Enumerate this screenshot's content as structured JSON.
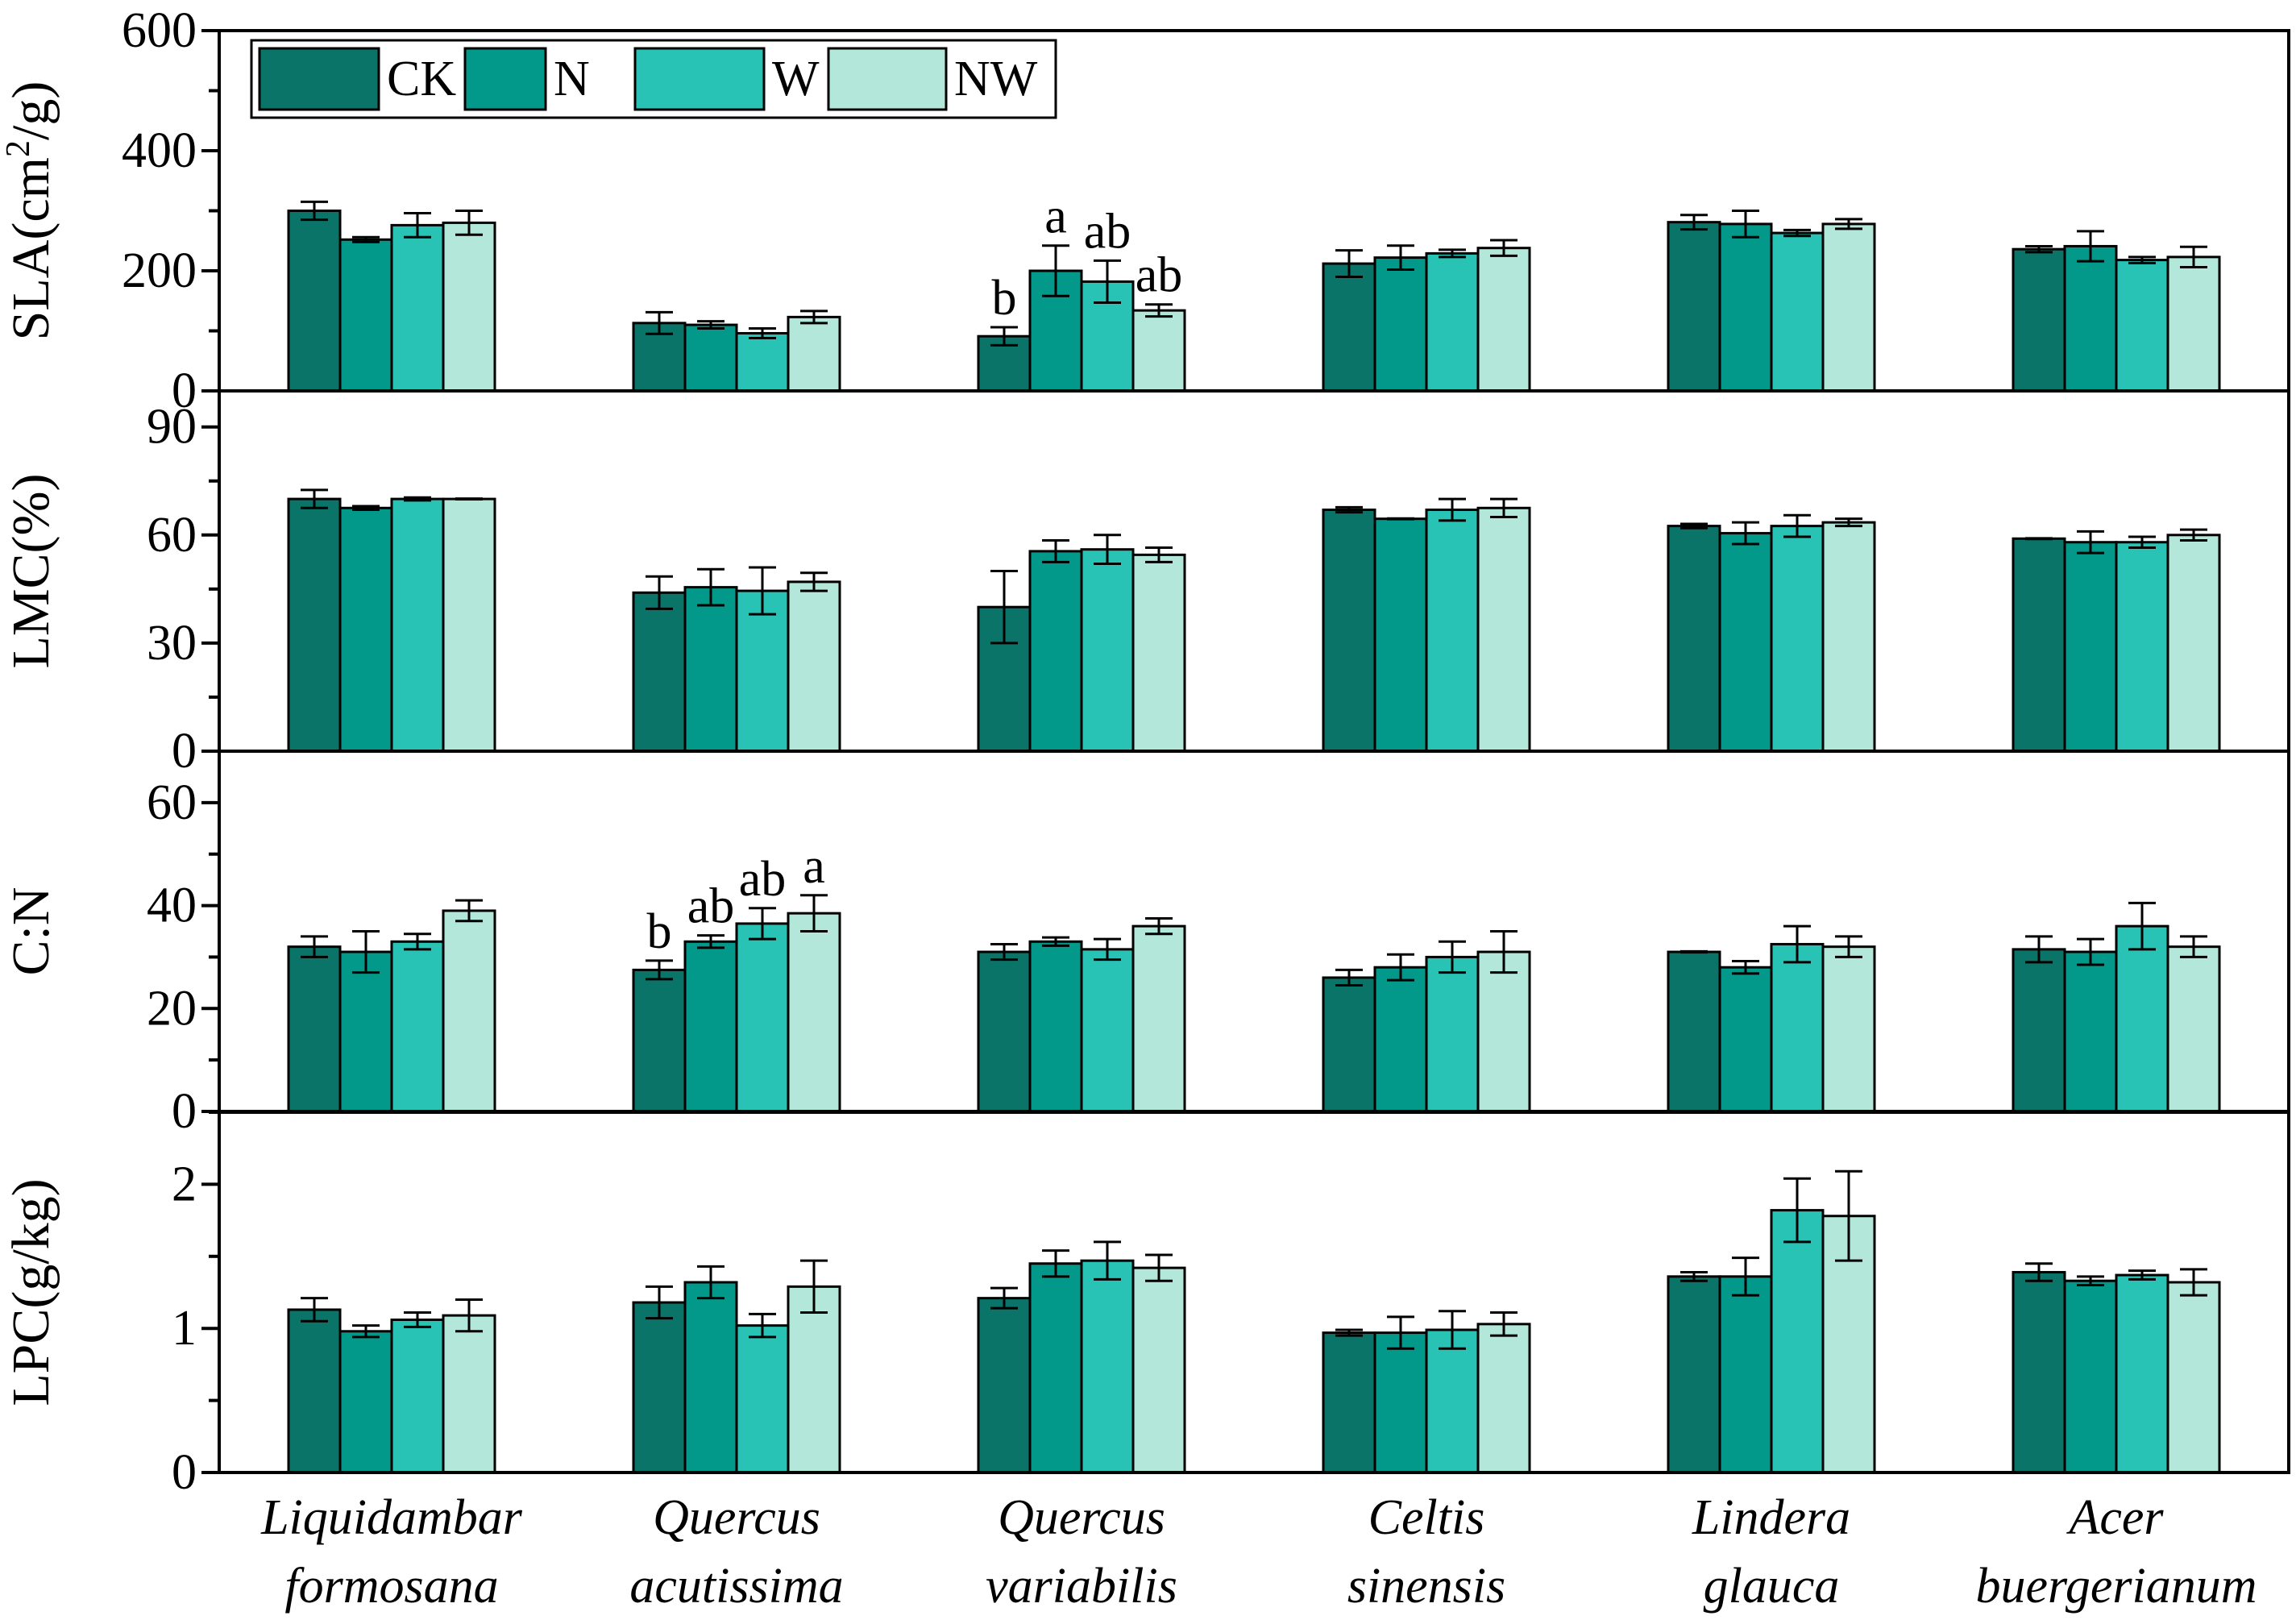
{
  "chart_data": {
    "type": "bar",
    "categories": [
      [
        "Liquidambar",
        "formosana"
      ],
      [
        "Quercus",
        "acutissima"
      ],
      [
        "Quercus",
        "variabilis"
      ],
      [
        "Celtis",
        "sinensis"
      ],
      [
        "Lindera",
        "glauca"
      ],
      [
        "Acer",
        "buergerianum"
      ]
    ],
    "legend": {
      "position": "top-left",
      "entries": [
        {
          "name": "CK",
          "color": "#0b7468"
        },
        {
          "name": "N",
          "color": "#03998a"
        },
        {
          "name": "W",
          "color": "#28c3b5"
        },
        {
          "name": "NW",
          "color": "#b3e7d9"
        }
      ]
    },
    "panels": [
      {
        "ylabel_main": "SLA(cm",
        "ylabel_sup": "2",
        "ylabel_tail": "/g)",
        "ylim": [
          0,
          600
        ],
        "major_ticks": [
          0,
          200,
          400,
          600
        ],
        "tick_labels": [
          "0",
          "200",
          "400",
          "600"
        ],
        "minor_step": 100,
        "series": [
          {
            "name": "CK",
            "values": [
              300,
              113,
              91,
              212,
              281,
              236
            ],
            "errors": [
              15,
              18,
              15,
              22,
              12,
              5
            ]
          },
          {
            "name": "N",
            "values": [
              252,
              110,
              200,
              222,
              278,
              241
            ],
            "errors": [
              4,
              6,
              42,
              20,
              22,
              25
            ]
          },
          {
            "name": "W",
            "values": [
              276,
              96,
              182,
              229,
              263,
              218
            ],
            "errors": [
              20,
              8,
              35,
              6,
              5,
              5
            ]
          },
          {
            "name": "NW",
            "values": [
              280,
              123,
              134,
              238,
              278,
              223
            ],
            "errors": [
              20,
              10,
              10,
              13,
              8,
              17
            ]
          }
        ],
        "annotations": [
          {
            "category": 2,
            "series": 0,
            "text": "b"
          },
          {
            "category": 2,
            "series": 1,
            "text": "a"
          },
          {
            "category": 2,
            "series": 2,
            "text": "ab"
          },
          {
            "category": 2,
            "series": 3,
            "text": "ab"
          }
        ]
      },
      {
        "ylabel_main": "LMC(%)",
        "ylim": [
          0,
          100
        ],
        "major_ticks": [
          0,
          30,
          60,
          90
        ],
        "tick_labels": [
          "0",
          "30",
          "60",
          "90"
        ],
        "minor_step": 15,
        "series": [
          {
            "name": "CK",
            "values": [
              70,
              44,
              40,
              67,
              62.5,
              59
            ],
            "errors": [
              2.5,
              4.5,
              10,
              0.7,
              0.6,
              0.1
            ]
          },
          {
            "name": "N",
            "values": [
              67.5,
              45.5,
              55.5,
              64.5,
              60.5,
              58
            ],
            "errors": [
              0.5,
              5,
              3,
              0.1,
              3,
              3
            ]
          },
          {
            "name": "W",
            "values": [
              70,
              44.5,
              56,
              67,
              62.5,
              58
            ],
            "errors": [
              0.4,
              6.5,
              4,
              3,
              3,
              1.5
            ]
          },
          {
            "name": "NW",
            "values": [
              70,
              47,
              54.5,
              67.5,
              63.5,
              60
            ],
            "errors": [
              0.1,
              2.5,
              2,
              2.5,
              1,
              1.5
            ]
          }
        ],
        "annotations": []
      },
      {
        "ylabel_main": "C:N",
        "ylim": [
          0,
          70
        ],
        "major_ticks": [
          0,
          20,
          40,
          60
        ],
        "tick_labels": [
          "0",
          "20",
          "40",
          "60"
        ],
        "minor_step": 10,
        "series": [
          {
            "name": "CK",
            "values": [
              32,
              27.5,
              31,
              26,
              31,
              31.5
            ],
            "errors": [
              2,
              1.8,
              1.5,
              1.5,
              0.1,
              2.5
            ]
          },
          {
            "name": "N",
            "values": [
              31,
              33,
              33,
              28,
              28,
              31
            ],
            "errors": [
              4,
              1.2,
              0.8,
              2.5,
              1.2,
              2.5
            ]
          },
          {
            "name": "W",
            "values": [
              33,
              36.5,
              31.5,
              30,
              32.5,
              36
            ],
            "errors": [
              1.5,
              3,
              2,
              3,
              3.5,
              4.5
            ]
          },
          {
            "name": "NW",
            "values": [
              39,
              38.5,
              36,
              31,
              32,
              32
            ],
            "errors": [
              2,
              3.5,
              1.5,
              4,
              2,
              2
            ]
          }
        ],
        "annotations": [
          {
            "category": 1,
            "series": 0,
            "text": "b"
          },
          {
            "category": 1,
            "series": 1,
            "text": "ab"
          },
          {
            "category": 1,
            "series": 2,
            "text": "ab"
          },
          {
            "category": 1,
            "series": 3,
            "text": "a"
          }
        ]
      },
      {
        "ylabel_main": "LPC(g/kg)",
        "ylim": [
          0,
          2.5
        ],
        "major_ticks": [
          0,
          1,
          2
        ],
        "tick_labels": [
          "0",
          "1",
          "2"
        ],
        "minor_step": 0.5,
        "series": [
          {
            "name": "CK",
            "values": [
              1.13,
              1.18,
              1.21,
              0.97,
              1.36,
              1.39
            ],
            "errors": [
              0.08,
              0.11,
              0.07,
              0.02,
              0.03,
              0.06
            ]
          },
          {
            "name": "N",
            "values": [
              0.98,
              1.32,
              1.45,
              0.97,
              1.36,
              1.33
            ],
            "errors": [
              0.04,
              0.11,
              0.09,
              0.11,
              0.13,
              0.03
            ]
          },
          {
            "name": "W",
            "values": [
              1.06,
              1.02,
              1.47,
              0.99,
              1.82,
              1.37
            ],
            "errors": [
              0.05,
              0.08,
              0.13,
              0.13,
              0.22,
              0.03
            ]
          },
          {
            "name": "NW",
            "values": [
              1.09,
              1.29,
              1.42,
              1.03,
              1.78,
              1.32
            ],
            "errors": [
              0.11,
              0.18,
              0.09,
              0.08,
              0.31,
              0.09
            ]
          }
        ],
        "annotations": []
      }
    ]
  }
}
